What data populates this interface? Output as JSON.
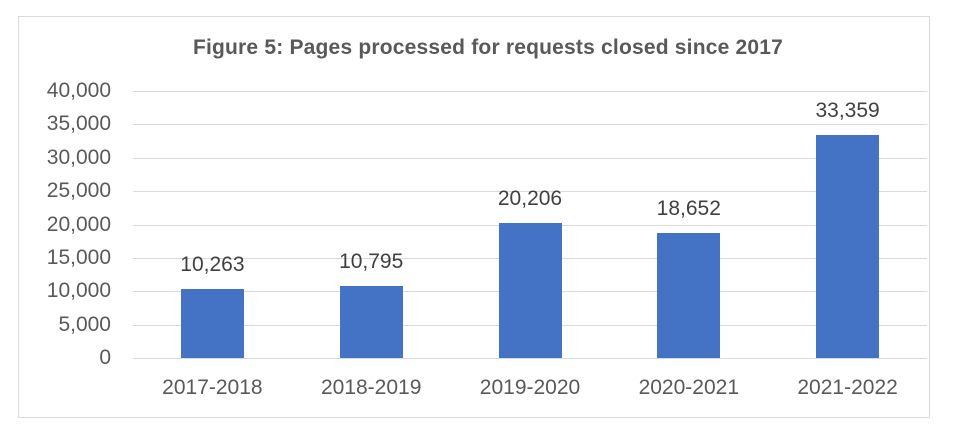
{
  "chart_data": {
    "type": "bar",
    "title": "Figure 5: Pages processed for requests closed since 2017",
    "xlabel": "",
    "ylabel": "",
    "categories": [
      "2017-2018",
      "2018-2019",
      "2019-2020",
      "2020-2021",
      "2021-2022"
    ],
    "values": [
      10263,
      10795,
      20206,
      18652,
      33359
    ],
    "value_labels": [
      "10,263",
      "10,795",
      "20,206",
      "18,652",
      "33,359"
    ],
    "ylim": [
      0,
      40000
    ],
    "yticks": [
      0,
      5000,
      10000,
      15000,
      20000,
      25000,
      30000,
      35000,
      40000
    ],
    "ytick_labels": [
      "0",
      "5,000",
      "10,000",
      "15,000",
      "20,000",
      "25,000",
      "30,000",
      "35,000",
      "40,000"
    ],
    "grid": true,
    "legend": null,
    "bar_color": "#4472c4"
  },
  "colors": {
    "bar": "#4472c4",
    "gridline": "#d9d9d9",
    "text": "#595959",
    "border": "#d9d9d9"
  }
}
